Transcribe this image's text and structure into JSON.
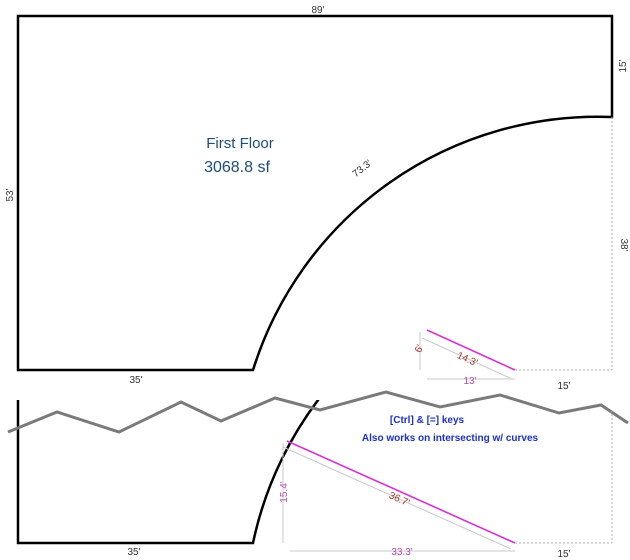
{
  "top_plan": {
    "room_name": "First Floor",
    "area": "3068.8 sf",
    "dim_top": "89'",
    "dim_left": "53'",
    "dim_right_upper": "15'",
    "dim_right_lower": "38'",
    "dim_arc": "73.3'",
    "dim_bottom_left": "35'",
    "dim_bottom_right": "15'",
    "inset": {
      "leg_vertical": "6'",
      "hypotenuse": "14.3'",
      "leg_horizontal": "13'"
    }
  },
  "bottom_plan": {
    "dim_bottom_left": "35'",
    "dim_bottom_right": "15'",
    "dim_vertical": "15.4'",
    "dim_diagonal": "36.7'",
    "dim_horizontal": "33.3'",
    "note_line1": "[Ctrl] & [=] keys",
    "note_line2": "Also works on intersecting w/ curves"
  },
  "colors": {
    "wall": "#000000",
    "room_label": "#1d4d7a",
    "magenta_line": "#d631d6",
    "dim_red": "#a0342a",
    "dim_magenta": "#b04bb0",
    "note_blue": "#1a2fd0",
    "break_line": "#7a7a7a",
    "guide": "#b0b0b0"
  }
}
